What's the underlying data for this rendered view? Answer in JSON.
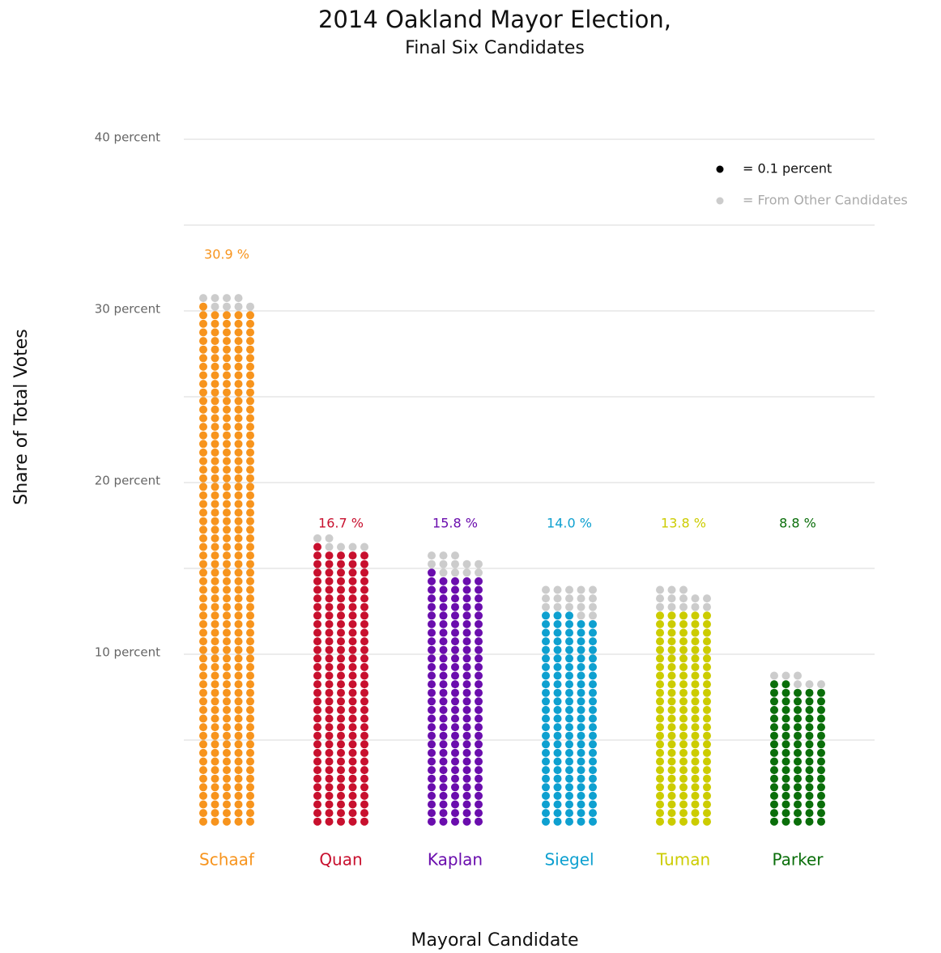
{
  "chart_data": {
    "type": "dot_stack",
    "title": "2014 Oakland Mayor Election,",
    "subtitle": "Final Six Candidates",
    "y_label": "Share of Total Votes",
    "x_label": "Mayoral Candidate",
    "categories": [
      "Schaaf",
      "Quan",
      "Kaplan",
      "Siegel",
      "Tuman",
      "Parker"
    ],
    "colors": [
      "#f7941d",
      "#c8102e",
      "#6a0dad",
      "#0ea0d0",
      "#cccc00",
      "#0a6e0a"
    ],
    "dot_value": 0.1,
    "series": [
      {
        "name": "= 0.1 percent",
        "color": "#000000",
        "values": [
          30.1,
          16.1,
          14.6,
          12.3,
          12.5,
          8.2
        ]
      },
      {
        "name": "= From Other Candidates",
        "color": "#cccccc",
        "values": [
          0.8,
          0.6,
          1.2,
          1.7,
          1.3,
          0.6
        ]
      }
    ],
    "totals": [
      30.9,
      16.7,
      15.8,
      14.0,
      13.8,
      8.8
    ],
    "value_labels": [
      "30.9 %",
      "16.7 %",
      "15.8 %",
      "14.0 %",
      "13.8 %",
      "8.8 %"
    ],
    "ylim": [
      0,
      40
    ],
    "yticks": [
      {
        "value": 10,
        "label": "10 percent"
      },
      {
        "value": 20,
        "label": "20 percent"
      },
      {
        "value": 30,
        "label": "30 percent"
      },
      {
        "value": 40,
        "label": "40 percent"
      }
    ],
    "minor_yticks": [
      5,
      15,
      25,
      35
    ],
    "grid": true,
    "legend": "upper right"
  }
}
